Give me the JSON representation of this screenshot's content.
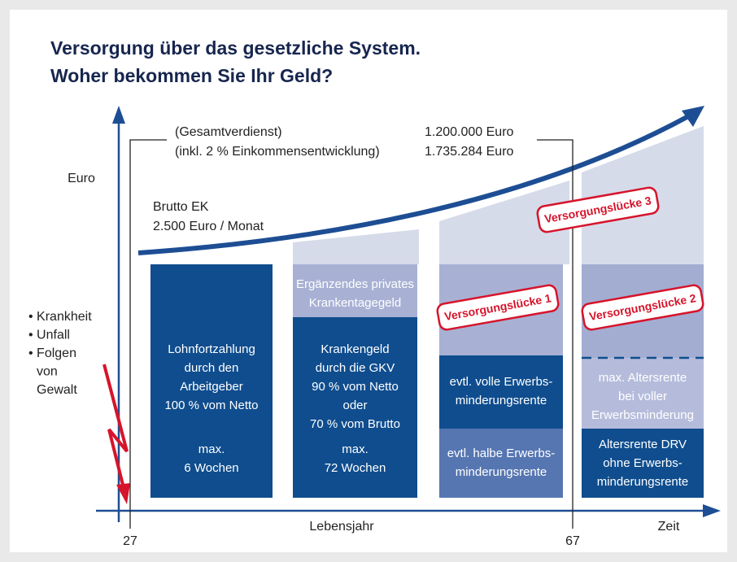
{
  "title": [
    "Versorgung über das gesetzliche System.",
    "Woher bekommen Sie Ihr Geld?"
  ],
  "axes": {
    "y_label": "Euro",
    "x_label": "Lebensjahr",
    "x_end": "Zeit",
    "start_age": "27",
    "end_age": "67"
  },
  "annotations": {
    "total_left": [
      "(Gesamtverdienst)",
      "(inkl. 2 % Einkommensentwicklung)"
    ],
    "total_right": [
      "1.200.000 Euro",
      "1.735.284 Euro"
    ],
    "income": [
      "Brutto EK",
      "2.500 Euro / Monat"
    ]
  },
  "risks": [
    "• Krankheit",
    "• Unfall",
    "• Folgen",
    "von",
    "Gewalt"
  ],
  "columns": [
    {
      "blocks": [
        [
          "Lohnfortzahlung",
          "durch den",
          "Arbeitgeber",
          "100 % vom Netto"
        ],
        [
          "max.",
          "6 Wochen"
        ]
      ]
    },
    {
      "blocks": [
        [
          "Ergänzendes privates",
          "Krankentagegeld"
        ],
        [
          "Krankengeld",
          "durch die GKV",
          "90 % vom Netto",
          "oder",
          "70 % vom Brutto"
        ],
        [
          "max.",
          "72 Wochen"
        ]
      ]
    },
    {
      "blocks": [
        [
          "evtl. volle Erwerbs-",
          "minderungsrente"
        ],
        [
          "evtl. halbe Erwerbs-",
          "minderungsrente"
        ]
      ]
    },
    {
      "blocks": [
        [
          "max. Altersrente",
          "bei voller",
          "Erwerbsminderung"
        ],
        [
          "Altersrente DRV",
          "ohne Erwerbs-",
          "minderungsrente"
        ]
      ]
    }
  ],
  "gaps": [
    "Versorgungslücke 1",
    "Versorgungslücke 2",
    "Versorgungslücke 3"
  ]
}
